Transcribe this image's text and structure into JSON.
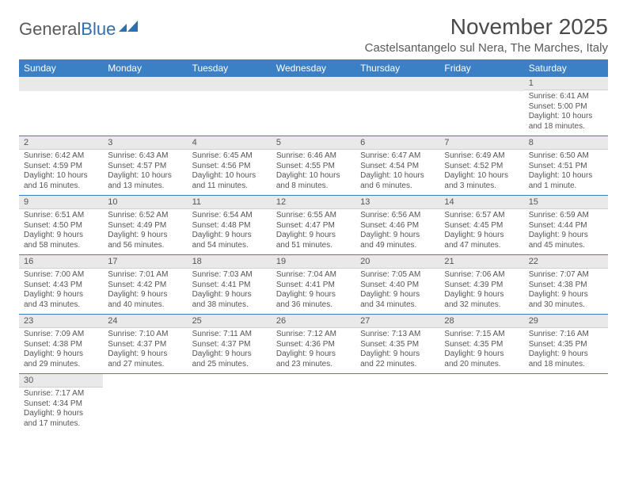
{
  "logo": {
    "part1": "General",
    "part2": "Blue"
  },
  "title": "November 2025",
  "location": "Castelsantangelo sul Nera, The Marches, Italy",
  "colors": {
    "header_bg": "#3b7fc4",
    "header_text": "#ffffff",
    "daynum_bg": "#e9e9e9",
    "row_divider": "#3b7fc4",
    "text": "#555555",
    "logo_gray": "#5a5a5a",
    "logo_blue": "#2f6fab"
  },
  "day_headers": [
    "Sunday",
    "Monday",
    "Tuesday",
    "Wednesday",
    "Thursday",
    "Friday",
    "Saturday"
  ],
  "weeks": [
    [
      null,
      null,
      null,
      null,
      null,
      null,
      {
        "n": "1",
        "sr": "Sunrise: 6:41 AM",
        "ss": "Sunset: 5:00 PM",
        "dl": "Daylight: 10 hours and 18 minutes."
      }
    ],
    [
      {
        "n": "2",
        "sr": "Sunrise: 6:42 AM",
        "ss": "Sunset: 4:59 PM",
        "dl": "Daylight: 10 hours and 16 minutes."
      },
      {
        "n": "3",
        "sr": "Sunrise: 6:43 AM",
        "ss": "Sunset: 4:57 PM",
        "dl": "Daylight: 10 hours and 13 minutes."
      },
      {
        "n": "4",
        "sr": "Sunrise: 6:45 AM",
        "ss": "Sunset: 4:56 PM",
        "dl": "Daylight: 10 hours and 11 minutes."
      },
      {
        "n": "5",
        "sr": "Sunrise: 6:46 AM",
        "ss": "Sunset: 4:55 PM",
        "dl": "Daylight: 10 hours and 8 minutes."
      },
      {
        "n": "6",
        "sr": "Sunrise: 6:47 AM",
        "ss": "Sunset: 4:54 PM",
        "dl": "Daylight: 10 hours and 6 minutes."
      },
      {
        "n": "7",
        "sr": "Sunrise: 6:49 AM",
        "ss": "Sunset: 4:52 PM",
        "dl": "Daylight: 10 hours and 3 minutes."
      },
      {
        "n": "8",
        "sr": "Sunrise: 6:50 AM",
        "ss": "Sunset: 4:51 PM",
        "dl": "Daylight: 10 hours and 1 minute."
      }
    ],
    [
      {
        "n": "9",
        "sr": "Sunrise: 6:51 AM",
        "ss": "Sunset: 4:50 PM",
        "dl": "Daylight: 9 hours and 58 minutes."
      },
      {
        "n": "10",
        "sr": "Sunrise: 6:52 AM",
        "ss": "Sunset: 4:49 PM",
        "dl": "Daylight: 9 hours and 56 minutes."
      },
      {
        "n": "11",
        "sr": "Sunrise: 6:54 AM",
        "ss": "Sunset: 4:48 PM",
        "dl": "Daylight: 9 hours and 54 minutes."
      },
      {
        "n": "12",
        "sr": "Sunrise: 6:55 AM",
        "ss": "Sunset: 4:47 PM",
        "dl": "Daylight: 9 hours and 51 minutes."
      },
      {
        "n": "13",
        "sr": "Sunrise: 6:56 AM",
        "ss": "Sunset: 4:46 PM",
        "dl": "Daylight: 9 hours and 49 minutes."
      },
      {
        "n": "14",
        "sr": "Sunrise: 6:57 AM",
        "ss": "Sunset: 4:45 PM",
        "dl": "Daylight: 9 hours and 47 minutes."
      },
      {
        "n": "15",
        "sr": "Sunrise: 6:59 AM",
        "ss": "Sunset: 4:44 PM",
        "dl": "Daylight: 9 hours and 45 minutes."
      }
    ],
    [
      {
        "n": "16",
        "sr": "Sunrise: 7:00 AM",
        "ss": "Sunset: 4:43 PM",
        "dl": "Daylight: 9 hours and 43 minutes."
      },
      {
        "n": "17",
        "sr": "Sunrise: 7:01 AM",
        "ss": "Sunset: 4:42 PM",
        "dl": "Daylight: 9 hours and 40 minutes."
      },
      {
        "n": "18",
        "sr": "Sunrise: 7:03 AM",
        "ss": "Sunset: 4:41 PM",
        "dl": "Daylight: 9 hours and 38 minutes."
      },
      {
        "n": "19",
        "sr": "Sunrise: 7:04 AM",
        "ss": "Sunset: 4:41 PM",
        "dl": "Daylight: 9 hours and 36 minutes."
      },
      {
        "n": "20",
        "sr": "Sunrise: 7:05 AM",
        "ss": "Sunset: 4:40 PM",
        "dl": "Daylight: 9 hours and 34 minutes."
      },
      {
        "n": "21",
        "sr": "Sunrise: 7:06 AM",
        "ss": "Sunset: 4:39 PM",
        "dl": "Daylight: 9 hours and 32 minutes."
      },
      {
        "n": "22",
        "sr": "Sunrise: 7:07 AM",
        "ss": "Sunset: 4:38 PM",
        "dl": "Daylight: 9 hours and 30 minutes."
      }
    ],
    [
      {
        "n": "23",
        "sr": "Sunrise: 7:09 AM",
        "ss": "Sunset: 4:38 PM",
        "dl": "Daylight: 9 hours and 29 minutes."
      },
      {
        "n": "24",
        "sr": "Sunrise: 7:10 AM",
        "ss": "Sunset: 4:37 PM",
        "dl": "Daylight: 9 hours and 27 minutes."
      },
      {
        "n": "25",
        "sr": "Sunrise: 7:11 AM",
        "ss": "Sunset: 4:37 PM",
        "dl": "Daylight: 9 hours and 25 minutes."
      },
      {
        "n": "26",
        "sr": "Sunrise: 7:12 AM",
        "ss": "Sunset: 4:36 PM",
        "dl": "Daylight: 9 hours and 23 minutes."
      },
      {
        "n": "27",
        "sr": "Sunrise: 7:13 AM",
        "ss": "Sunset: 4:35 PM",
        "dl": "Daylight: 9 hours and 22 minutes."
      },
      {
        "n": "28",
        "sr": "Sunrise: 7:15 AM",
        "ss": "Sunset: 4:35 PM",
        "dl": "Daylight: 9 hours and 20 minutes."
      },
      {
        "n": "29",
        "sr": "Sunrise: 7:16 AM",
        "ss": "Sunset: 4:35 PM",
        "dl": "Daylight: 9 hours and 18 minutes."
      }
    ],
    [
      {
        "n": "30",
        "sr": "Sunrise: 7:17 AM",
        "ss": "Sunset: 4:34 PM",
        "dl": "Daylight: 9 hours and 17 minutes."
      },
      null,
      null,
      null,
      null,
      null,
      null
    ]
  ]
}
